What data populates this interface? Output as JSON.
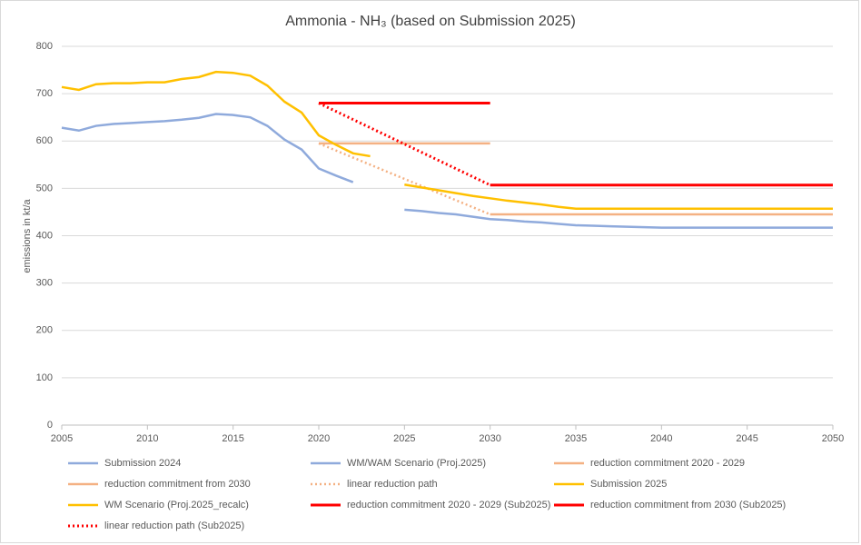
{
  "chart_data": {
    "type": "line",
    "title": "Ammonia - NH₃ (based on Submission 2025)",
    "y_label": "emissions in kt/a",
    "xlim": [
      2005,
      2050
    ],
    "xticks": [
      2005,
      2010,
      2015,
      2020,
      2025,
      2030,
      2035,
      2040,
      2045,
      2050
    ],
    "ylim": [
      0,
      800
    ],
    "yticks": [
      0,
      100,
      200,
      300,
      400,
      500,
      600,
      700,
      800
    ],
    "grid": true,
    "series": [
      {
        "name": "Submission 2024",
        "color": "#8FAADC",
        "style": "solid",
        "x": [
          2005,
          2006,
          2007,
          2008,
          2009,
          2010,
          2011,
          2012,
          2013,
          2014,
          2015,
          2016,
          2017,
          2018,
          2019,
          2020,
          2021,
          2022
        ],
        "values": [
          628,
          622,
          632,
          636,
          638,
          640,
          642,
          645,
          649,
          657,
          655,
          650,
          632,
          603,
          582,
          542,
          527,
          513
        ]
      },
      {
        "name": "WM/WAM Scenario (Proj.2025)",
        "color": "#8FAADC",
        "style": "solid",
        "x": [
          2025,
          2026,
          2027,
          2028,
          2029,
          2030,
          2031,
          2032,
          2033,
          2034,
          2035,
          2036,
          2037,
          2038,
          2039,
          2040,
          2050
        ],
        "values": [
          455,
          452,
          448,
          445,
          440,
          435,
          433,
          430,
          428,
          425,
          422,
          421,
          420,
          419,
          418,
          417,
          417
        ]
      },
      {
        "name": "reduction commitment 2020 - 2029",
        "color": "#F4B183",
        "style": "solid",
        "x": [
          2020,
          2030
        ],
        "values": [
          595,
          595
        ]
      },
      {
        "name": "reduction commitment from 2030",
        "color": "#F4B183",
        "style": "solid",
        "x": [
          2030,
          2050
        ],
        "values": [
          445,
          445
        ]
      },
      {
        "name": "linear reduction path",
        "color": "#F4B183",
        "style": "dotted",
        "x": [
          2020,
          2030
        ],
        "values": [
          595,
          445
        ]
      },
      {
        "name": "Submission 2025",
        "color": "#FFC000",
        "style": "solid",
        "x": [
          2005,
          2006,
          2007,
          2008,
          2009,
          2010,
          2011,
          2012,
          2013,
          2014,
          2015,
          2016,
          2017,
          2018,
          2019,
          2020,
          2021,
          2022,
          2023
        ],
        "values": [
          714,
          708,
          720,
          722,
          722,
          724,
          724,
          731,
          735,
          746,
          744,
          738,
          717,
          683,
          660,
          612,
          592,
          574,
          568
        ]
      },
      {
        "name": "WM Scenario (Proj.2025_recalc)",
        "color": "#FFC000",
        "style": "solid",
        "x": [
          2025,
          2026,
          2027,
          2028,
          2029,
          2030,
          2031,
          2032,
          2033,
          2034,
          2035,
          2050
        ],
        "values": [
          508,
          502,
          496,
          490,
          484,
          479,
          474,
          470,
          466,
          461,
          457,
          457
        ]
      },
      {
        "name": "reduction commitment 2020 - 2029 (Sub2025)",
        "color": "#FF0000",
        "style": "solid",
        "x": [
          2020,
          2030
        ],
        "values": [
          680,
          680
        ]
      },
      {
        "name": "reduction commitment from 2030 (Sub2025)",
        "color": "#FF0000",
        "style": "solid",
        "x": [
          2030,
          2050
        ],
        "values": [
          507,
          507
        ]
      },
      {
        "name": "linear reduction path (Sub2025)",
        "color": "#FF0000",
        "style": "dotted",
        "x": [
          2020,
          2030
        ],
        "values": [
          680,
          507
        ]
      }
    ]
  }
}
